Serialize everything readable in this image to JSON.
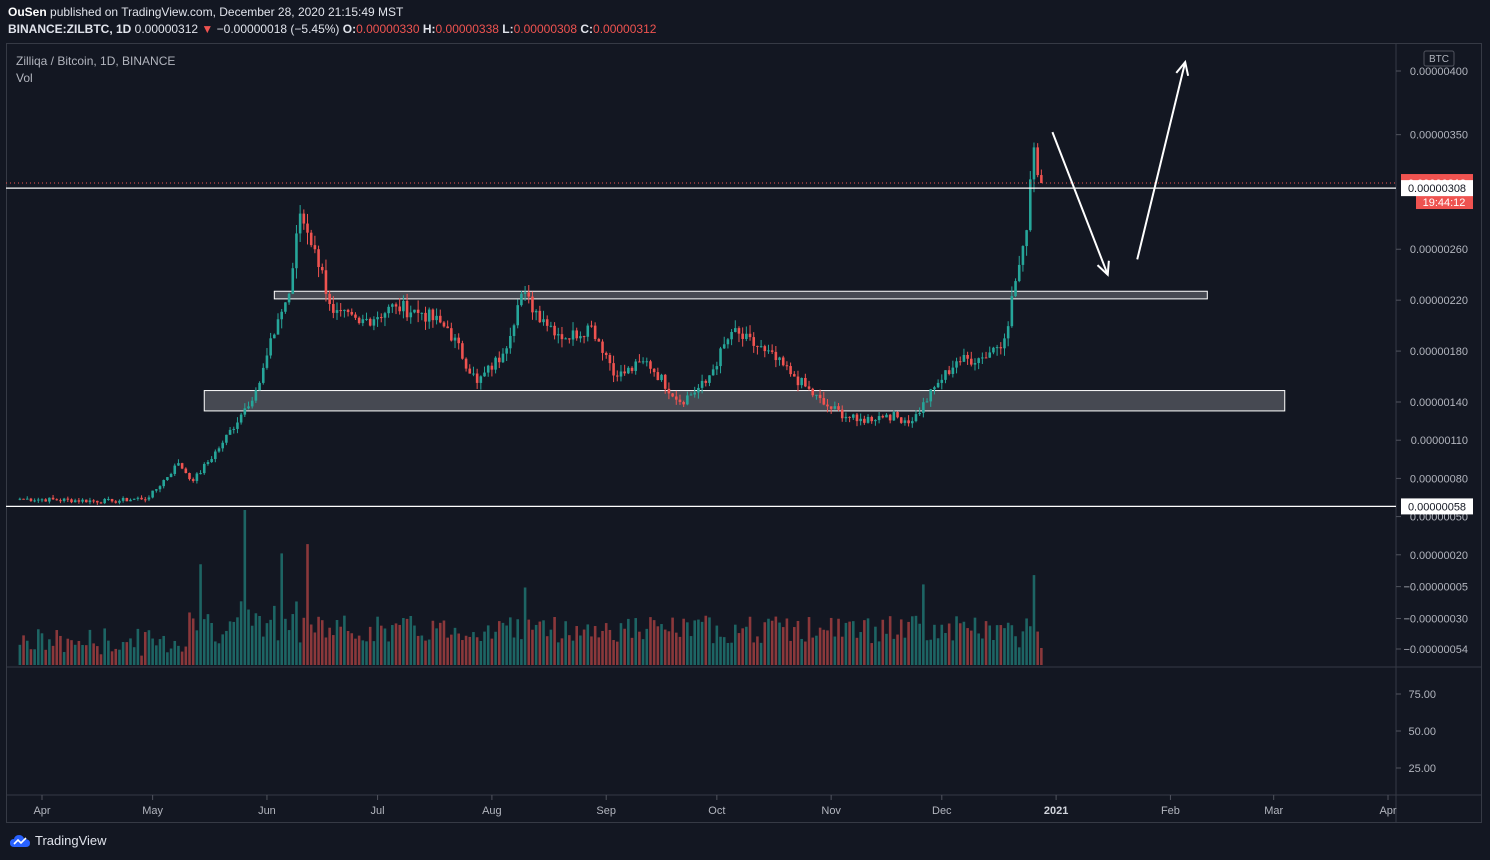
{
  "header": {
    "publisher": "OuSen",
    "published_text": "published on TradingView.com, December 28, 2020 21:15:49 MST",
    "symbol": "BINANCE:ZILBTC, 1D",
    "price": "0.00000312",
    "change": "−0.00000018 (−5.45%)",
    "open_label": "O:",
    "open": "0.00000330",
    "high_label": "H:",
    "high": "0.00000338",
    "low_label": "L:",
    "low": "0.00000308",
    "close_label": "C:",
    "close": "0.00000312"
  },
  "legend": {
    "title": "Zilliqa / Bitcoin, 1D, BINANCE",
    "volume": "Vol"
  },
  "footer": {
    "brand": "TradingView"
  },
  "colors": {
    "background": "#131722",
    "up": "#26a69a",
    "down": "#ef5350",
    "grid": "#2a2e39",
    "annotation": "#ffffff"
  },
  "chart_data": {
    "type": "candlestick",
    "symbol": "ZILBTC",
    "timeframe": "1D",
    "currency": "BTC",
    "x_tick_labels": [
      "Apr",
      "May",
      "Jun",
      "Jul",
      "Aug",
      "Sep",
      "Oct",
      "Nov",
      "Dec",
      "2021",
      "Feb",
      "Mar",
      "Apr"
    ],
    "x_ticks": [
      "2020-04-01",
      "2020-05-01",
      "2020-06-01",
      "2020-07-01",
      "2020-08-01",
      "2020-09-01",
      "2020-10-01",
      "2020-11-01",
      "2020-12-01",
      "2021-01-01",
      "2021-02-01",
      "2021-03-01",
      "2021-04-01"
    ],
    "price_axis_labels": [
      "0.00000400",
      "0.00000350",
      "0.00000260",
      "0.00000220",
      "0.00000180",
      "0.00000140",
      "0.00000110",
      "0.00000080",
      "0.00000050",
      "0.00000020",
      "−0.00000005",
      "−0.00000030",
      "−0.00000054"
    ],
    "price_axis_values": [
      4e-06,
      3.5e-06,
      2.6e-06,
      2.2e-06,
      1.8e-06,
      1.4e-06,
      1.1e-06,
      8e-07,
      5e-07,
      2e-07,
      -5e-08,
      -3e-07,
      -5.4e-07
    ],
    "lower_axis_labels": [
      "75.00",
      "50.00",
      "25.00"
    ],
    "last_price": {
      "value": "0.00000312",
      "countdown": "19:44:12"
    },
    "price_tags": [
      "0.00000308",
      "0.00000058"
    ],
    "horizontal_lines": [
      3.08e-06,
      5.8e-07
    ],
    "zones": [
      {
        "from": "2020-06-03",
        "to": "2021-02-11",
        "low": 2.21e-06,
        "high": 2.27e-06
      },
      {
        "from": "2020-05-15",
        "to": "2021-03-04",
        "low": 1.33e-06,
        "high": 1.49e-06
      }
    ],
    "arrows": [
      {
        "from_date": "2020-12-31",
        "from_price": 3.52e-06,
        "to_date": "2021-01-15",
        "to_price": 2.4e-06
      },
      {
        "from_date": "2021-01-23",
        "from_price": 2.52e-06,
        "to_date": "2021-02-05",
        "to_price": 4.07e-06
      }
    ],
    "close_anchors": [
      [
        "2020-03-26",
        6.4e-07
      ],
      [
        "2020-04-20",
        6.2e-07
      ],
      [
        "2020-04-30",
        6.5e-07
      ],
      [
        "2020-05-08",
        9.2e-07
      ],
      [
        "2020-05-12",
        7.8e-07
      ],
      [
        "2020-05-20",
        1.08e-06
      ],
      [
        "2020-05-26",
        1.35e-06
      ],
      [
        "2020-05-30",
        1.55e-06
      ],
      [
        "2020-06-04",
        2.05e-06
      ],
      [
        "2020-06-07",
        2.25e-06
      ],
      [
        "2020-06-10",
        2.88e-06
      ],
      [
        "2020-06-14",
        2.6e-06
      ],
      [
        "2020-06-19",
        2.1e-06
      ],
      [
        "2020-06-26",
        2.02e-06
      ],
      [
        "2020-07-06",
        2.15e-06
      ],
      [
        "2020-07-13",
        2.1e-06
      ],
      [
        "2020-07-20",
        1.98e-06
      ],
      [
        "2020-07-28",
        1.55e-06
      ],
      [
        "2020-08-04",
        1.78e-06
      ],
      [
        "2020-08-09",
        2.25e-06
      ],
      [
        "2020-08-15",
        2.05e-06
      ],
      [
        "2020-08-21",
        1.9e-06
      ],
      [
        "2020-08-28",
        2e-06
      ],
      [
        "2020-09-04",
        1.6e-06
      ],
      [
        "2020-09-12",
        1.72e-06
      ],
      [
        "2020-09-21",
        1.4e-06
      ],
      [
        "2020-09-28",
        1.55e-06
      ],
      [
        "2020-10-05",
        1.95e-06
      ],
      [
        "2020-10-14",
        1.8e-06
      ],
      [
        "2020-10-22",
        1.6e-06
      ],
      [
        "2020-10-30",
        1.38e-06
      ],
      [
        "2020-11-08",
        1.25e-06
      ],
      [
        "2020-11-16",
        1.3e-06
      ],
      [
        "2020-11-23",
        1.25e-06
      ],
      [
        "2020-11-30",
        1.55e-06
      ],
      [
        "2020-12-05",
        1.72e-06
      ],
      [
        "2020-12-12",
        1.75e-06
      ],
      [
        "2020-12-18",
        1.9e-06
      ],
      [
        "2020-12-21",
        2.35e-06
      ],
      [
        "2020-12-24",
        2.75e-06
      ],
      [
        "2020-12-26",
        3.4e-06
      ],
      [
        "2020-12-28",
        3.12e-06
      ]
    ],
    "volume_peaks": [
      [
        "2020-05-26",
        1.0
      ],
      [
        "2020-06-12",
        0.78
      ],
      [
        "2020-06-05",
        0.72
      ],
      [
        "2020-05-14",
        0.65
      ],
      [
        "2020-08-10",
        0.5
      ],
      [
        "2020-11-26",
        0.52
      ],
      [
        "2020-12-26",
        0.58
      ]
    ]
  }
}
